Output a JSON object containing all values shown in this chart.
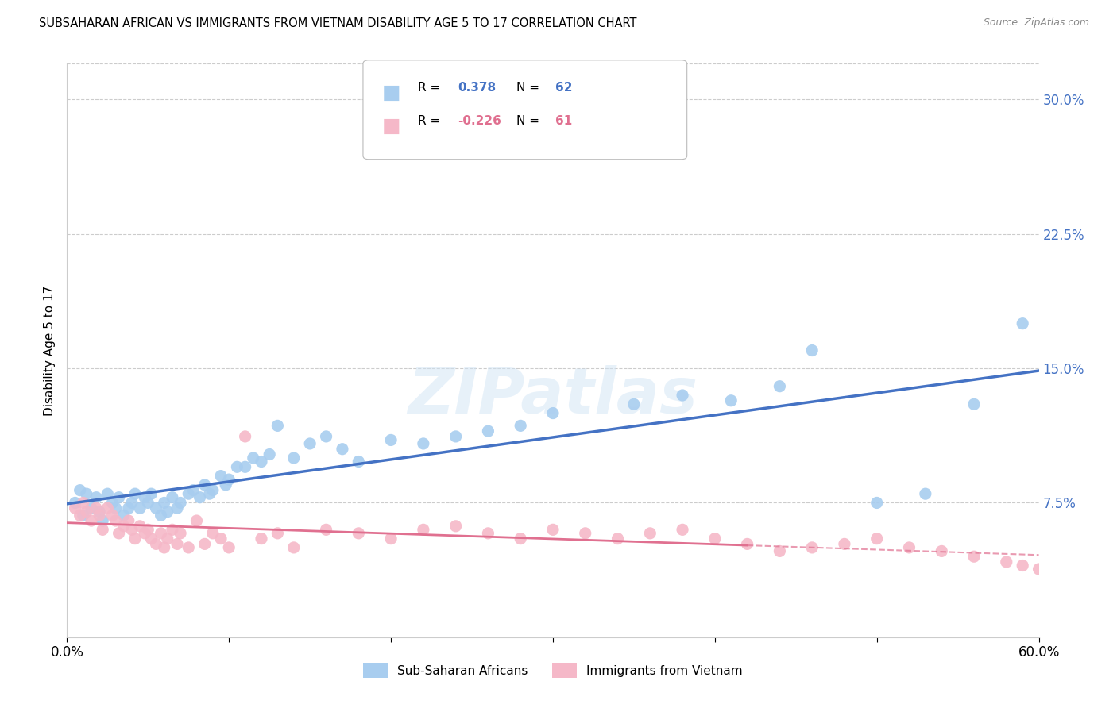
{
  "title": "SUBSAHARAN AFRICAN VS IMMIGRANTS FROM VIETNAM DISABILITY AGE 5 TO 17 CORRELATION CHART",
  "source": "Source: ZipAtlas.com",
  "ylabel": "Disability Age 5 to 17",
  "xlim": [
    0.0,
    0.6
  ],
  "ylim": [
    0.0,
    0.32
  ],
  "yticks": [
    0.075,
    0.15,
    0.225,
    0.3
  ],
  "ytick_labels": [
    "7.5%",
    "15.0%",
    "22.5%",
    "30.0%"
  ],
  "xticks": [
    0.0,
    0.1,
    0.2,
    0.3,
    0.4,
    0.5,
    0.6
  ],
  "xtick_labels": [
    "0.0%",
    "",
    "",
    "",
    "",
    "",
    "60.0%"
  ],
  "blue_color": "#A8CDEF",
  "pink_color": "#F5B8C8",
  "blue_line_color": "#4472C4",
  "pink_line_color": "#E07090",
  "R_blue": 0.378,
  "N_blue": 62,
  "R_pink": -0.226,
  "N_pink": 61,
  "legend_label_blue": "Sub-Saharan Africans",
  "legend_label_pink": "Immigrants from Vietnam",
  "watermark": "ZIPatlas",
  "blue_scatter_x": [
    0.005,
    0.008,
    0.01,
    0.012,
    0.015,
    0.018,
    0.02,
    0.022,
    0.025,
    0.028,
    0.03,
    0.032,
    0.035,
    0.038,
    0.04,
    0.042,
    0.045,
    0.048,
    0.05,
    0.052,
    0.055,
    0.058,
    0.06,
    0.062,
    0.065,
    0.068,
    0.07,
    0.075,
    0.078,
    0.082,
    0.085,
    0.088,
    0.09,
    0.095,
    0.098,
    0.1,
    0.105,
    0.11,
    0.115,
    0.12,
    0.125,
    0.13,
    0.14,
    0.15,
    0.16,
    0.17,
    0.18,
    0.2,
    0.22,
    0.24,
    0.26,
    0.28,
    0.3,
    0.35,
    0.38,
    0.41,
    0.44,
    0.46,
    0.5,
    0.53,
    0.56,
    0.59
  ],
  "blue_scatter_y": [
    0.075,
    0.082,
    0.068,
    0.08,
    0.072,
    0.078,
    0.07,
    0.065,
    0.08,
    0.075,
    0.072,
    0.078,
    0.068,
    0.072,
    0.075,
    0.08,
    0.072,
    0.078,
    0.075,
    0.08,
    0.072,
    0.068,
    0.075,
    0.07,
    0.078,
    0.072,
    0.075,
    0.08,
    0.082,
    0.078,
    0.085,
    0.08,
    0.082,
    0.09,
    0.085,
    0.088,
    0.095,
    0.095,
    0.1,
    0.098,
    0.102,
    0.118,
    0.1,
    0.108,
    0.112,
    0.105,
    0.098,
    0.11,
    0.108,
    0.112,
    0.115,
    0.118,
    0.125,
    0.13,
    0.135,
    0.132,
    0.14,
    0.16,
    0.075,
    0.08,
    0.13,
    0.175
  ],
  "pink_scatter_x": [
    0.005,
    0.008,
    0.01,
    0.012,
    0.015,
    0.018,
    0.02,
    0.022,
    0.025,
    0.028,
    0.03,
    0.032,
    0.035,
    0.038,
    0.04,
    0.042,
    0.045,
    0.048,
    0.05,
    0.052,
    0.055,
    0.058,
    0.06,
    0.062,
    0.065,
    0.068,
    0.07,
    0.075,
    0.08,
    0.085,
    0.09,
    0.095,
    0.1,
    0.11,
    0.12,
    0.13,
    0.14,
    0.16,
    0.18,
    0.2,
    0.22,
    0.24,
    0.26,
    0.28,
    0.3,
    0.32,
    0.34,
    0.36,
    0.38,
    0.4,
    0.42,
    0.44,
    0.46,
    0.48,
    0.5,
    0.52,
    0.54,
    0.56,
    0.58,
    0.59,
    0.6
  ],
  "pink_scatter_y": [
    0.072,
    0.068,
    0.075,
    0.07,
    0.065,
    0.072,
    0.068,
    0.06,
    0.072,
    0.068,
    0.065,
    0.058,
    0.062,
    0.065,
    0.06,
    0.055,
    0.062,
    0.058,
    0.06,
    0.055,
    0.052,
    0.058,
    0.05,
    0.055,
    0.06,
    0.052,
    0.058,
    0.05,
    0.065,
    0.052,
    0.058,
    0.055,
    0.05,
    0.112,
    0.055,
    0.058,
    0.05,
    0.06,
    0.058,
    0.055,
    0.06,
    0.062,
    0.058,
    0.055,
    0.06,
    0.058,
    0.055,
    0.058,
    0.06,
    0.055,
    0.052,
    0.048,
    0.05,
    0.052,
    0.055,
    0.05,
    0.048,
    0.045,
    0.042,
    0.04,
    0.038
  ],
  "pink_line_dash_start": 0.42
}
